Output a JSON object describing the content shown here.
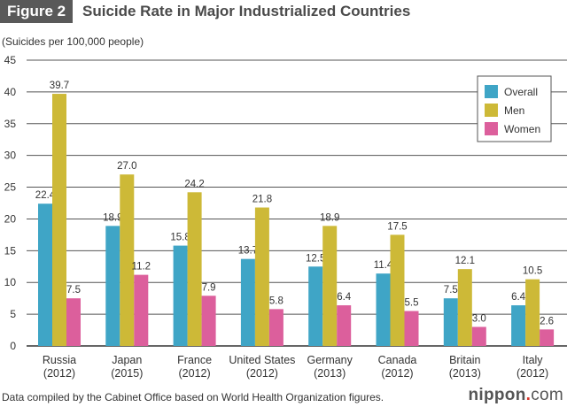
{
  "figure_label": "Figure 2",
  "footnote": "Data compiled by the Cabinet Office based on World Health Organization figures.",
  "logo": {
    "name": "nippon",
    "dot": ".",
    "tld": "com"
  },
  "chart_data": {
    "type": "bar",
    "title": "Suicide Rate in Major Industrialized Countries",
    "ylabel": "(Suicides per 100,000 people)",
    "xlabel": "",
    "ylim": [
      0,
      45
    ],
    "yticks": [
      0,
      5,
      10,
      15,
      20,
      25,
      30,
      35,
      40,
      45
    ],
    "grid": true,
    "legend_position": "top-right",
    "categories": [
      [
        "Russia",
        "(2012)"
      ],
      [
        "Japan",
        "(2015)"
      ],
      [
        "France",
        "(2012)"
      ],
      [
        "United States",
        "(2012)"
      ],
      [
        "Germany",
        "(2013)"
      ],
      [
        "Canada",
        "(2012)"
      ],
      [
        "Britain",
        "(2013)"
      ],
      [
        "Italy",
        "(2012)"
      ]
    ],
    "series": [
      {
        "name": "Overall",
        "color": "#3fa5c6",
        "values": [
          22.4,
          18.9,
          15.8,
          13.7,
          12.5,
          11.4,
          7.5,
          6.4
        ]
      },
      {
        "name": "Men",
        "color": "#cdb937",
        "values": [
          39.7,
          27.0,
          24.2,
          21.8,
          18.9,
          17.5,
          12.1,
          10.5
        ]
      },
      {
        "name": "Women",
        "color": "#dc5f9c",
        "values": [
          7.5,
          11.2,
          7.9,
          5.8,
          6.4,
          5.5,
          3.0,
          2.6
        ]
      }
    ]
  }
}
